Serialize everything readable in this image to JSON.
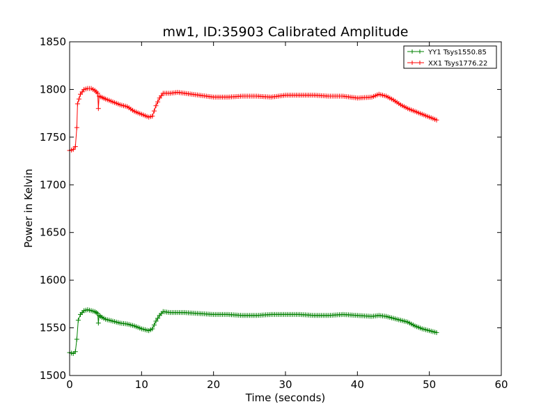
{
  "chart_data": {
    "type": "line",
    "title": "mw1, ID:35903 Calibrated Amplitude",
    "xlabel": "Time (seconds)",
    "ylabel": "Power in Kelvin",
    "xlim": [
      0,
      60
    ],
    "ylim": [
      1500,
      1850
    ],
    "xticks": [
      "0",
      "10",
      "20",
      "30",
      "40",
      "50",
      "60"
    ],
    "yticks": [
      "1500",
      "1550",
      "1600",
      "1650",
      "1700",
      "1750",
      "1800",
      "1850"
    ],
    "grid": false,
    "legend_position": "top-right",
    "marker": "+",
    "series": [
      {
        "name": "YY1 Tsys1550.85",
        "color": "#008000",
        "points": [
          [
            0,
            1524
          ],
          [
            0.5,
            1523
          ],
          [
            0.8,
            1525
          ],
          [
            1.0,
            1538
          ],
          [
            1.2,
            1558
          ],
          [
            1.5,
            1564
          ],
          [
            2.0,
            1568
          ],
          [
            2.5,
            1569
          ],
          [
            3.0,
            1568
          ],
          [
            3.5,
            1567
          ],
          [
            3.9,
            1565
          ],
          [
            4.0,
            1555
          ],
          [
            4.1,
            1563
          ],
          [
            4.5,
            1561
          ],
          [
            5.0,
            1559
          ],
          [
            6.0,
            1557
          ],
          [
            7.0,
            1555
          ],
          [
            8.0,
            1554
          ],
          [
            9.0,
            1552
          ],
          [
            10.0,
            1549
          ],
          [
            11.0,
            1547
          ],
          [
            11.5,
            1549
          ],
          [
            12.0,
            1557
          ],
          [
            12.5,
            1563
          ],
          [
            13.0,
            1567
          ],
          [
            14.0,
            1566
          ],
          [
            16.0,
            1566
          ],
          [
            18.0,
            1565
          ],
          [
            20.0,
            1564
          ],
          [
            22.0,
            1564
          ],
          [
            24.0,
            1563
          ],
          [
            26.0,
            1563
          ],
          [
            28.0,
            1564
          ],
          [
            30.0,
            1564
          ],
          [
            32.0,
            1564
          ],
          [
            34.0,
            1563
          ],
          [
            36.0,
            1563
          ],
          [
            38.0,
            1564
          ],
          [
            40.0,
            1563
          ],
          [
            42.0,
            1562
          ],
          [
            43.0,
            1563
          ],
          [
            44.0,
            1562
          ],
          [
            45.0,
            1560
          ],
          [
            46.0,
            1558
          ],
          [
            47.0,
            1556
          ],
          [
            48.0,
            1552
          ],
          [
            49.0,
            1549
          ],
          [
            50.0,
            1547
          ],
          [
            51.0,
            1545
          ]
        ]
      },
      {
        "name": "XX1 Tsys1776.22",
        "color": "#ff0000",
        "points": [
          [
            0,
            1736
          ],
          [
            0.5,
            1737
          ],
          [
            0.8,
            1740
          ],
          [
            1.0,
            1760
          ],
          [
            1.1,
            1785
          ],
          [
            1.3,
            1790
          ],
          [
            1.5,
            1795
          ],
          [
            2.0,
            1800
          ],
          [
            2.5,
            1801
          ],
          [
            3.0,
            1801
          ],
          [
            3.5,
            1799
          ],
          [
            3.9,
            1796
          ],
          [
            4.0,
            1780
          ],
          [
            4.1,
            1793
          ],
          [
            5.0,
            1790
          ],
          [
            6.0,
            1787
          ],
          [
            7.0,
            1784
          ],
          [
            8.0,
            1782
          ],
          [
            9.0,
            1777
          ],
          [
            10.0,
            1774
          ],
          [
            11.0,
            1771
          ],
          [
            11.5,
            1772
          ],
          [
            12.0,
            1783
          ],
          [
            12.5,
            1791
          ],
          [
            13.0,
            1796
          ],
          [
            14.0,
            1796
          ],
          [
            15.0,
            1797
          ],
          [
            16.0,
            1796
          ],
          [
            18.0,
            1794
          ],
          [
            20.0,
            1792
          ],
          [
            22.0,
            1792
          ],
          [
            24.0,
            1793
          ],
          [
            26.0,
            1793
          ],
          [
            28.0,
            1792
          ],
          [
            30.0,
            1794
          ],
          [
            32.0,
            1794
          ],
          [
            34.0,
            1794
          ],
          [
            36.0,
            1793
          ],
          [
            38.0,
            1793
          ],
          [
            40.0,
            1791
          ],
          [
            42.0,
            1792
          ],
          [
            43.0,
            1795
          ],
          [
            44.0,
            1793
          ],
          [
            45.0,
            1789
          ],
          [
            46.0,
            1784
          ],
          [
            47.0,
            1780
          ],
          [
            48.0,
            1777
          ],
          [
            49.0,
            1774
          ],
          [
            50.0,
            1771
          ],
          [
            51.0,
            1768
          ]
        ]
      }
    ]
  }
}
